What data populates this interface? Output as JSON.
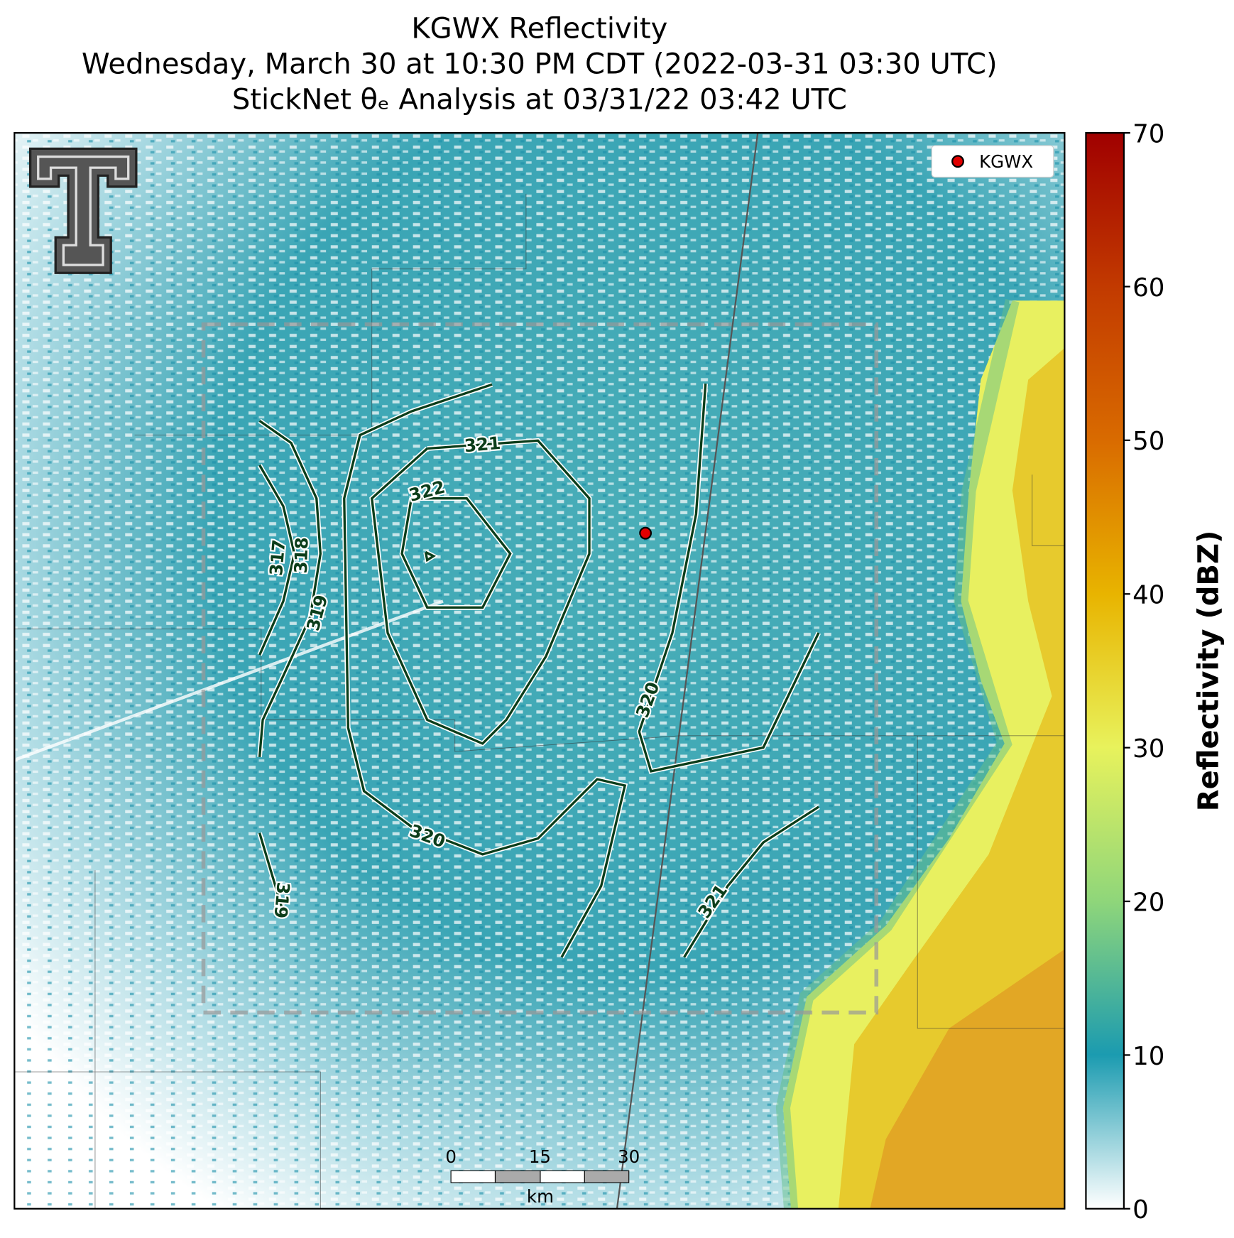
{
  "title": [
    "KGWX Reflectivity",
    "Wednesday, March 30 at 10:30 PM CDT (2022-03-31 03:30 UTC)",
    "StickNet θₑ Analysis at 03/31/22 03:42 UTC"
  ],
  "legend": {
    "label": "KGWX"
  },
  "colorbar": {
    "label": "Reflectivity (dBZ)",
    "lim": [
      0,
      70
    ],
    "ticks": [
      0,
      10,
      20,
      30,
      40,
      50,
      60,
      70
    ]
  },
  "scale_bar": {
    "ticks": [
      0,
      15,
      30
    ],
    "unit": "km"
  },
  "contours": [
    {
      "label": 317
    },
    {
      "label": 318
    },
    {
      "label": 319
    },
    {
      "label": 322
    },
    {
      "label": 321
    },
    {
      "label": 320
    },
    {
      "label": 320
    },
    {
      "label": 319
    },
    {
      "label": 321
    }
  ]
}
